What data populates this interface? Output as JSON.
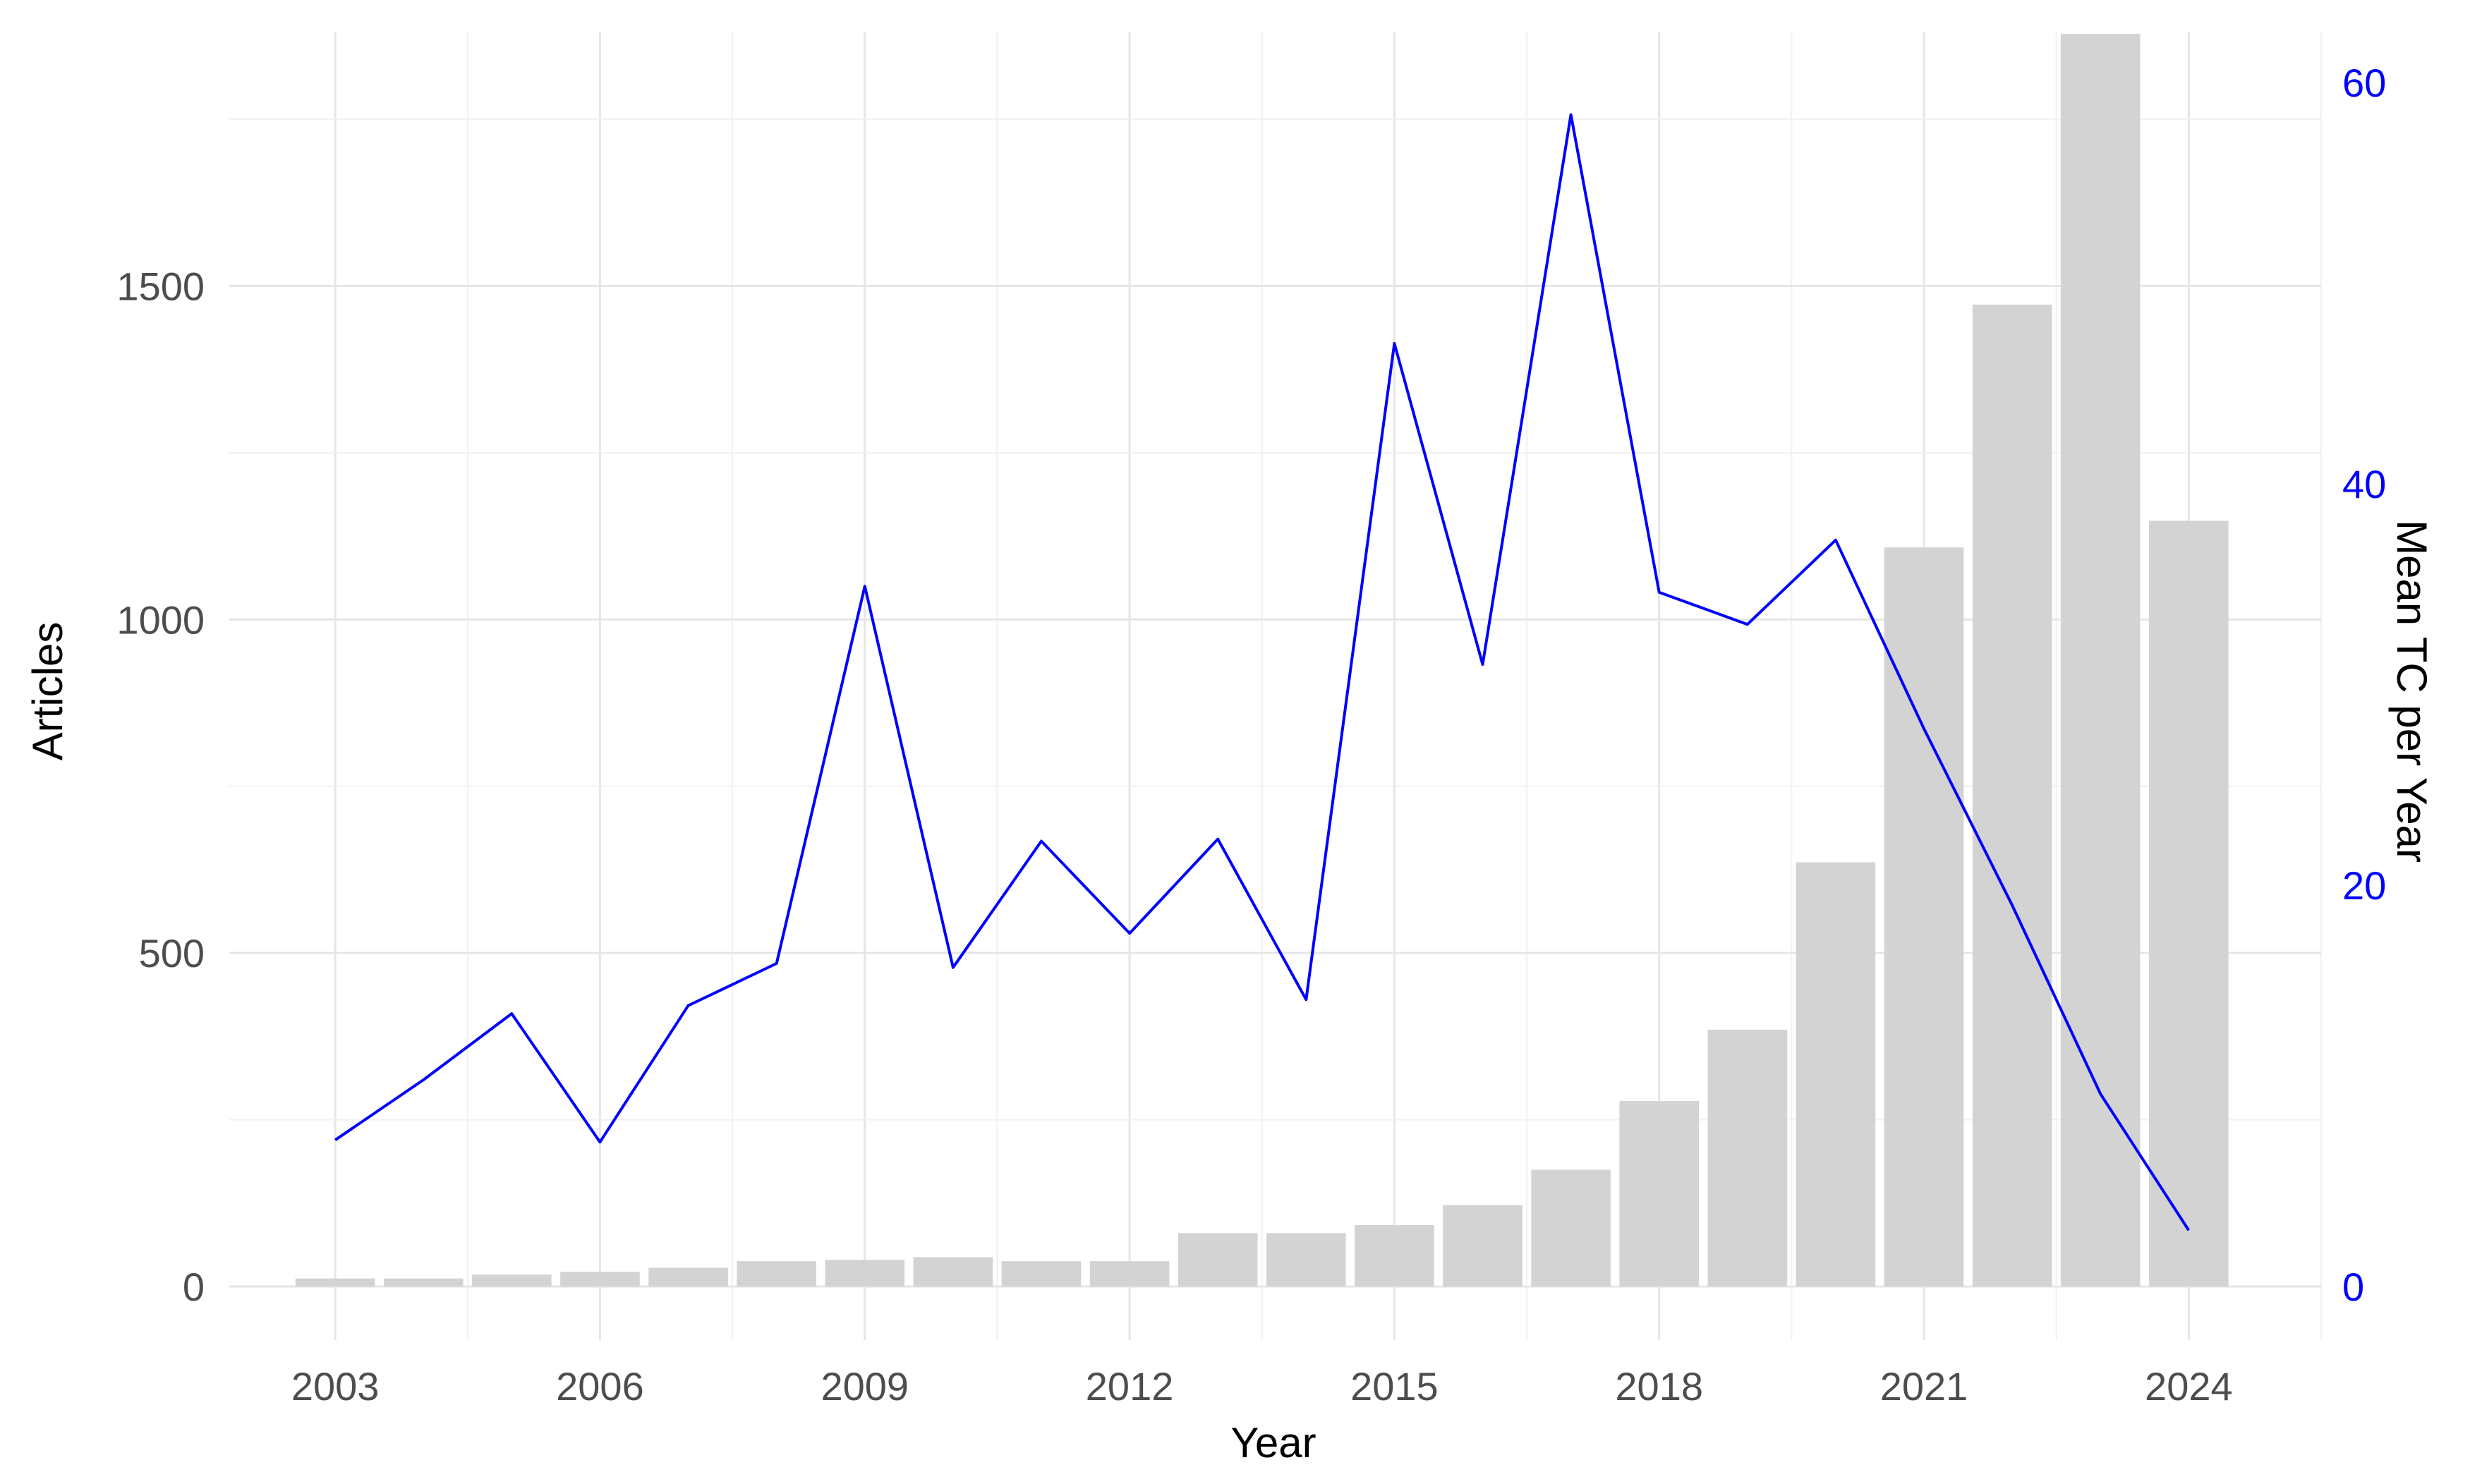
{
  "chart_data": {
    "type": "bar",
    "xlabel": "Year",
    "ylabel": "Articles",
    "ylabel_right": "Mean TC per Year",
    "x_ticks": [
      2003,
      2006,
      2009,
      2012,
      2015,
      2018,
      2021,
      2024
    ],
    "y_ticks": [
      0,
      500,
      1000,
      1500
    ],
    "y_ticks_right": [
      0,
      20,
      40,
      60
    ],
    "ylim": [
      0,
      1880
    ],
    "ylim_right": [
      0,
      62.5
    ],
    "xlim": [
      2001.8,
      2025.5
    ],
    "grid": true,
    "colors": {
      "bars": "#d3d3d3",
      "line": "#0000ff",
      "grid": "#e6e6e6"
    },
    "years": [
      2003,
      2004,
      2005,
      2006,
      2007,
      2008,
      2009,
      2010,
      2011,
      2012,
      2013,
      2014,
      2015,
      2016,
      2017,
      2018,
      2019,
      2020,
      2021,
      2022,
      2023,
      2024
    ],
    "series": [
      {
        "type": "bar",
        "axis": "left",
        "values": [
          12,
          12,
          18,
          22,
          28,
          38,
          40,
          44,
          38,
          38,
          80,
          80,
          92,
          122,
          175,
          278,
          385,
          636,
          1108,
          1472,
          1878,
          1148
        ]
      },
      {
        "type": "line",
        "axis": "right",
        "values": [
          7.3,
          10.3,
          13.6,
          7.2,
          14.0,
          16.1,
          34.9,
          15.9,
          22.2,
          17.6,
          22.3,
          14.3,
          47.0,
          31.0,
          58.4,
          34.6,
          33.0,
          37.2,
          27.8,
          19.0,
          9.6,
          2.8
        ]
      }
    ]
  }
}
